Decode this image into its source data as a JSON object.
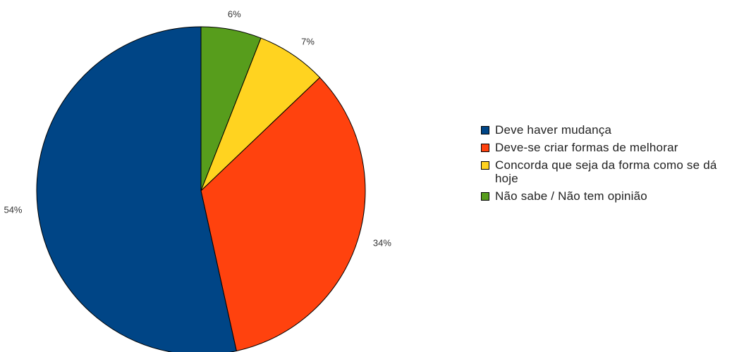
{
  "chart_data": {
    "type": "pie",
    "title": "",
    "slices": [
      {
        "name": "Não sabe / Não tem opinião",
        "value": 6,
        "label": "6%",
        "color": "#579d1c"
      },
      {
        "name": "Concorda que seja da forma como se dá hoje",
        "value": 7,
        "label": "7%",
        "color": "#ffd320"
      },
      {
        "name": "Deve-se criar formas de melhorar",
        "value": 34,
        "label": "34%",
        "color": "#ff420e"
      },
      {
        "name": "Deve haver mudança",
        "value": 54,
        "label": "54%",
        "color": "#004586"
      }
    ],
    "start_angle": "top (12 o'clock), clockwise",
    "legend_position": "right"
  },
  "legend": {
    "items": [
      {
        "label": "Deve haver mudança",
        "color": "#004586"
      },
      {
        "label": "Deve-se criar formas de melhorar",
        "color": "#ff420e"
      },
      {
        "label": "Concorda que seja da forma como se dá hoje",
        "color": "#ffd320"
      },
      {
        "label": "Não sabe / Não tem opinião",
        "color": "#579d1c"
      }
    ]
  }
}
